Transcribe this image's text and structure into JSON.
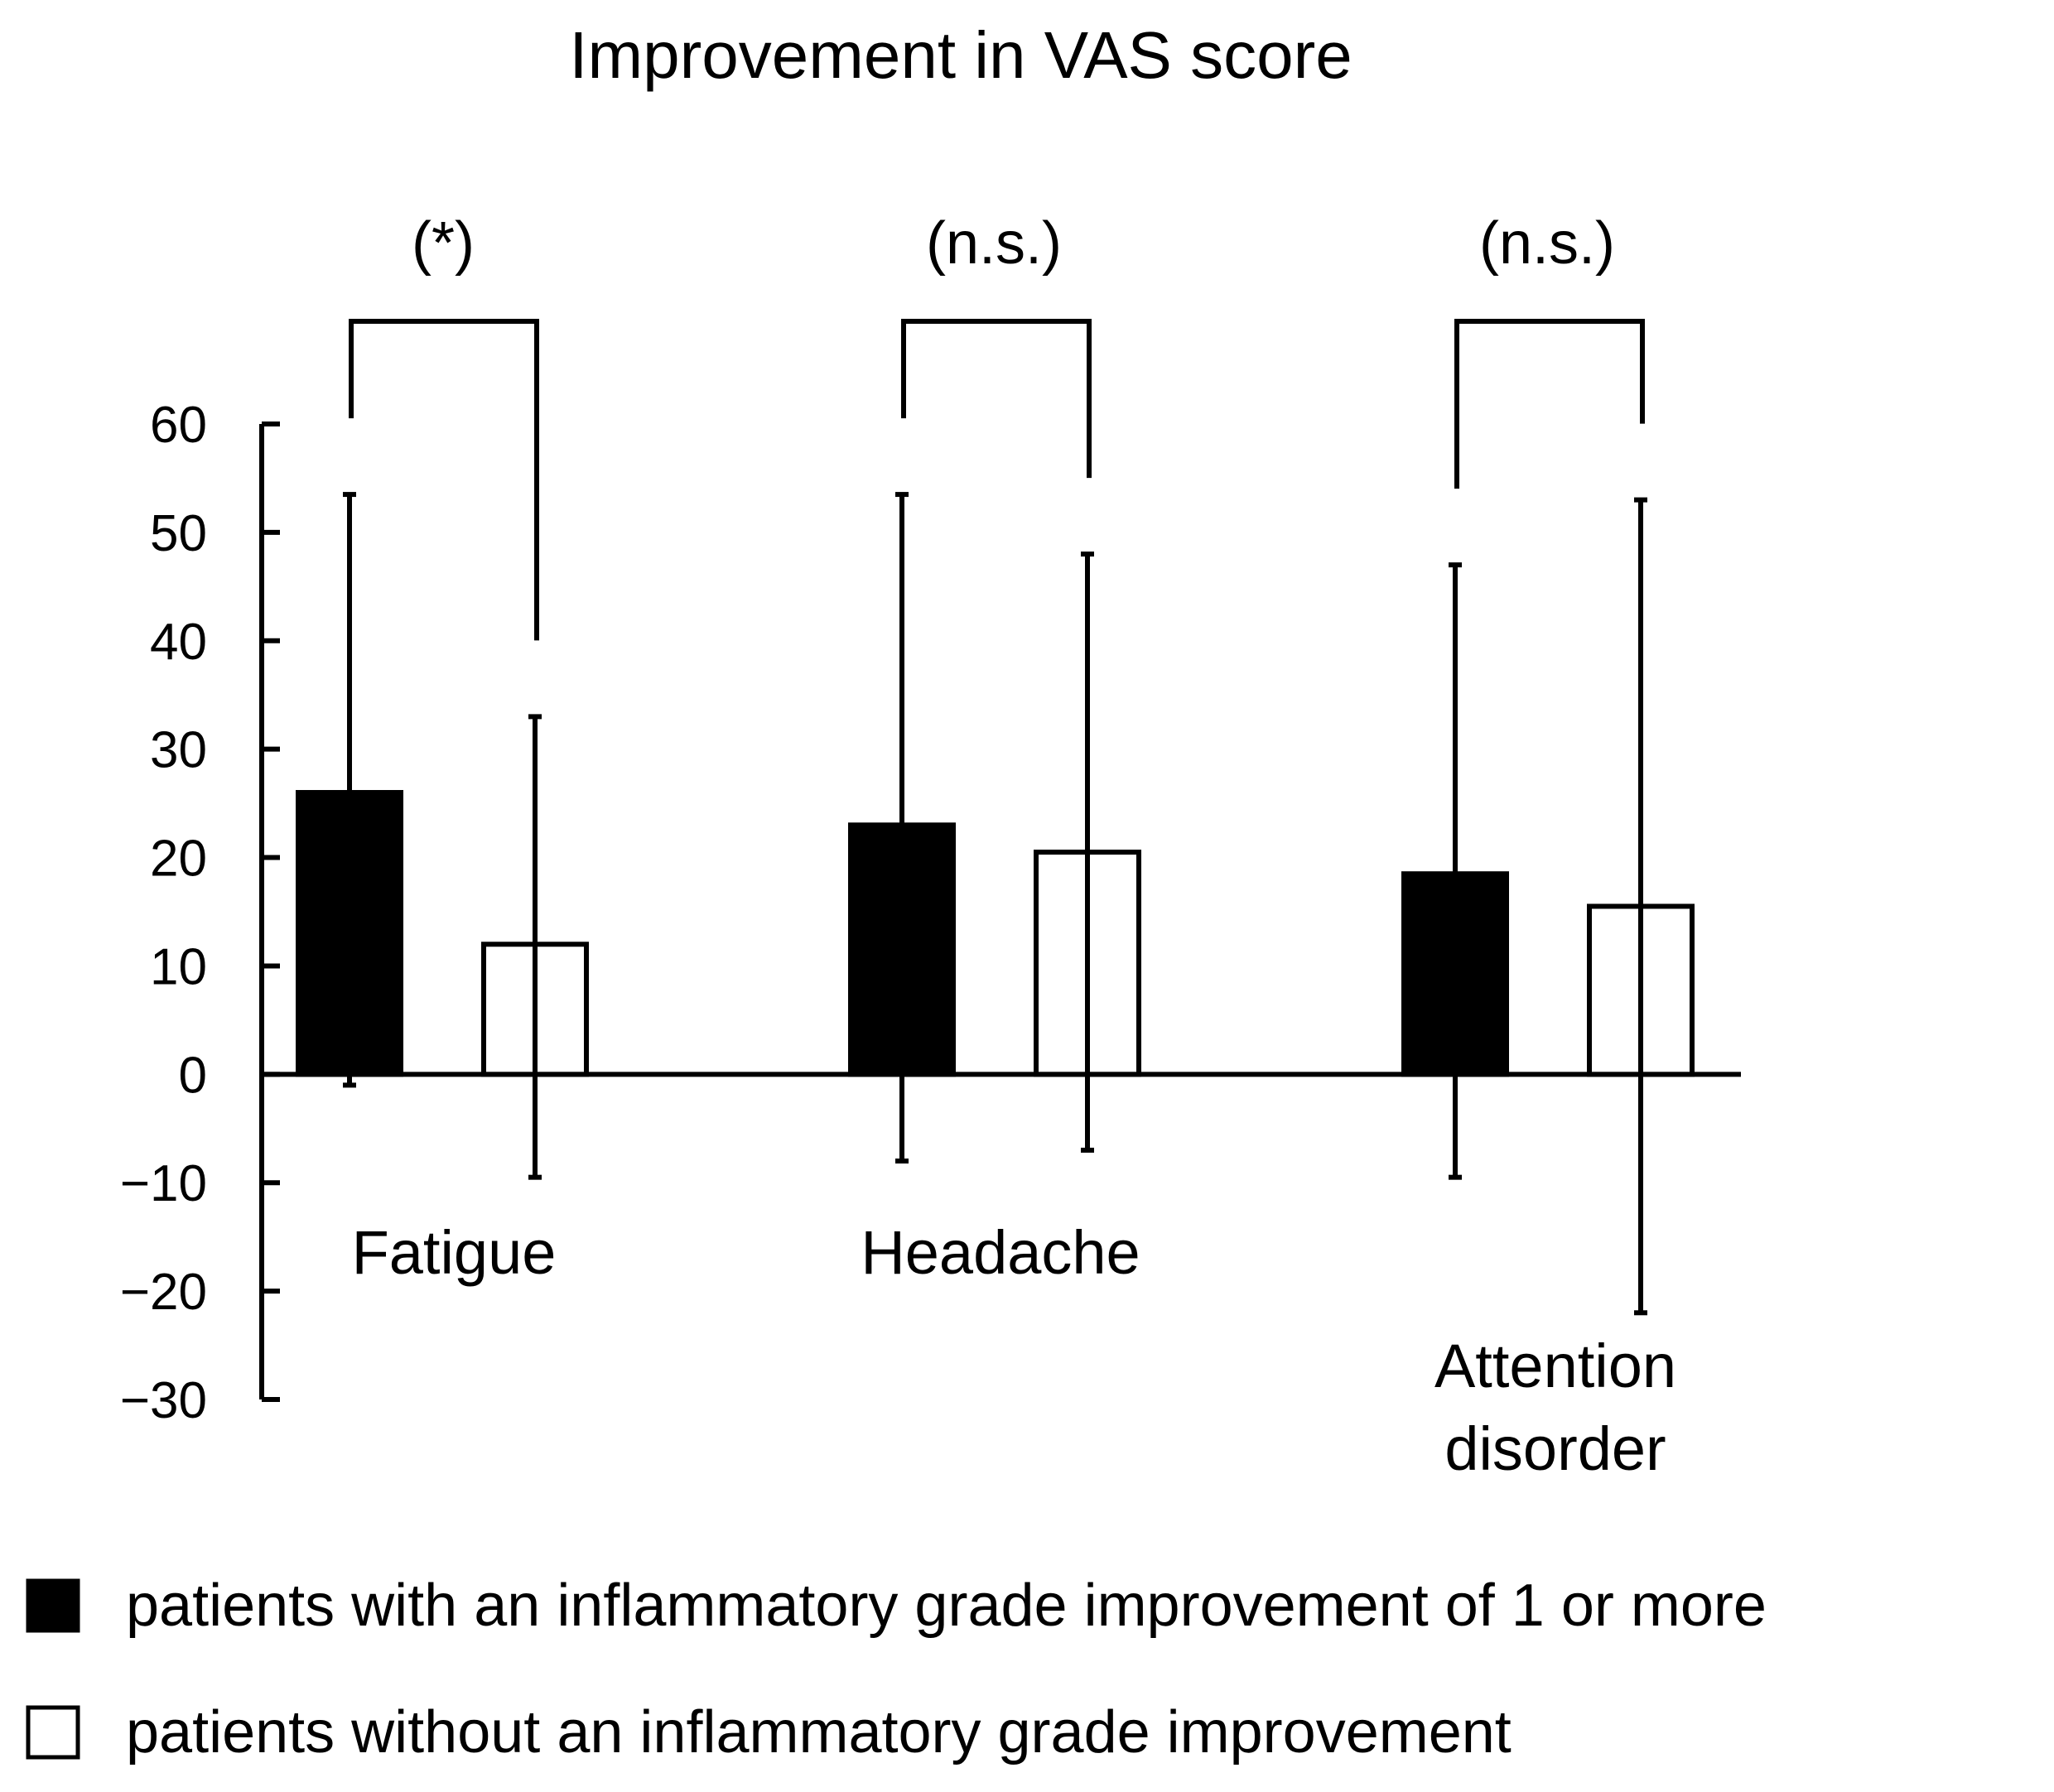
{
  "chart_data": {
    "type": "bar",
    "title": "Improvement in VAS score",
    "xlabel": "",
    "ylabel": "",
    "ylim": [
      -30,
      60
    ],
    "yticks": [
      60,
      50,
      40,
      30,
      20,
      10,
      0,
      -10,
      -20,
      -30
    ],
    "ytick_labels": [
      "60",
      "50",
      "40",
      "30",
      "20",
      "10",
      "0",
      "−10",
      "−20",
      "−30"
    ],
    "grid": false,
    "legend_position": "bottom",
    "categories": [
      "Fatigue",
      "Headache",
      "Attention disorder"
    ],
    "category_label_lines": [
      [
        "Fatigue"
      ],
      [
        "Headache"
      ],
      [
        "Attention",
        "disorder"
      ]
    ],
    "series": [
      {
        "name": "patients with an inflammatory grade improvement of 1 or more",
        "fill": "#000000",
        "values": [
          26,
          23,
          18.5
        ],
        "error_low": [
          -1,
          -8,
          -9.5
        ],
        "error_high": [
          53.5,
          53.5,
          47
        ]
      },
      {
        "name": "patients without an inflammatory grade improvement",
        "fill": "#ffffff",
        "values": [
          12,
          20.5,
          15.5
        ],
        "error_low": [
          -9.5,
          -7,
          -22
        ],
        "error_high": [
          33,
          48,
          53
        ]
      }
    ],
    "significance": [
      "(*)",
      "(n.s.)",
      "(n.s.)"
    ]
  }
}
